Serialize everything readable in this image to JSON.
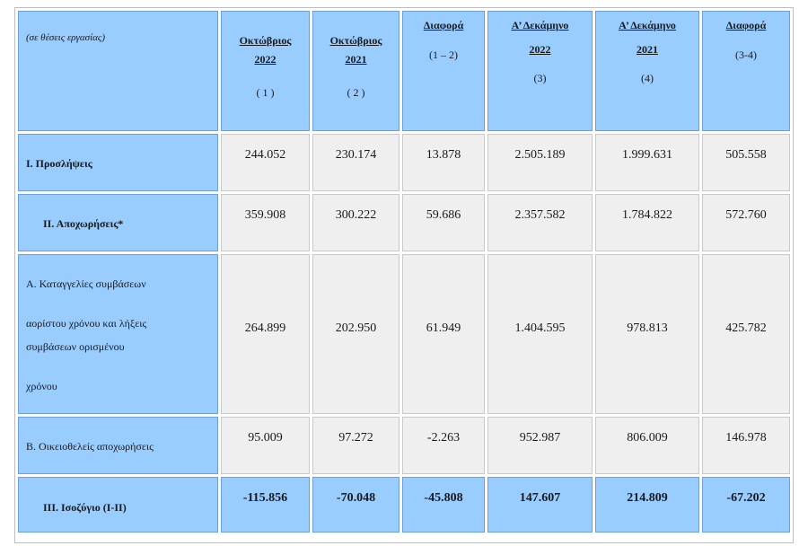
{
  "header": {
    "note": "(σε θέσεις εργασίας)",
    "columns": [
      {
        "title_line1": "Οκτώβριος",
        "title_line2": "2022",
        "code": "( 1 )"
      },
      {
        "title_line1": "Οκτώβριος",
        "title_line2": "2021",
        "code": "( 2 )"
      },
      {
        "title_line1": "Διαφορά",
        "title_line2": "",
        "code": "(1 – 2)"
      },
      {
        "title_line1": "Α’ Δεκάμηνο",
        "title_line2": "2022",
        "code": "(3)"
      },
      {
        "title_line1": "Α’ Δεκάμηνο",
        "title_line2": "2021",
        "code": "(4)"
      },
      {
        "title_line1": "Διαφορά",
        "title_line2": "",
        "code": "(3-4)"
      }
    ]
  },
  "rows": [
    {
      "label": "Ι. Προσλήψεις",
      "values": [
        "244.052",
        "230.174",
        "13.878",
        "2.505.189",
        "1.999.631",
        "505.558"
      ]
    },
    {
      "label": "ΙΙ. Αποχωρήσεις*",
      "values": [
        "359.908",
        "300.222",
        "59.686",
        "2.357.582",
        "1.784.822",
        "572.760"
      ]
    },
    {
      "label_lines": [
        "Α. Καταγγελίες συμβάσεων",
        "αορίστου χρόνου και λήξεις",
        "συμβάσεων ορισμένου",
        "χρόνου"
      ],
      "values": [
        "264.899",
        "202.950",
        "61.949",
        "1.404.595",
        "978.813",
        "425.782"
      ]
    },
    {
      "label": "Β. Οικειοθελείς αποχωρήσεις",
      "values": [
        "95.009",
        "97.272",
        "-2.263",
        "952.987",
        "806.009",
        "146.978"
      ]
    },
    {
      "label": "ΙΙΙ. Ισοζύγιο (Ι-ΙΙ)",
      "values": [
        "-115.856",
        "-70.048",
        "-45.808",
        "147.607",
        "214.809",
        "-67.202"
      ]
    }
  ]
}
